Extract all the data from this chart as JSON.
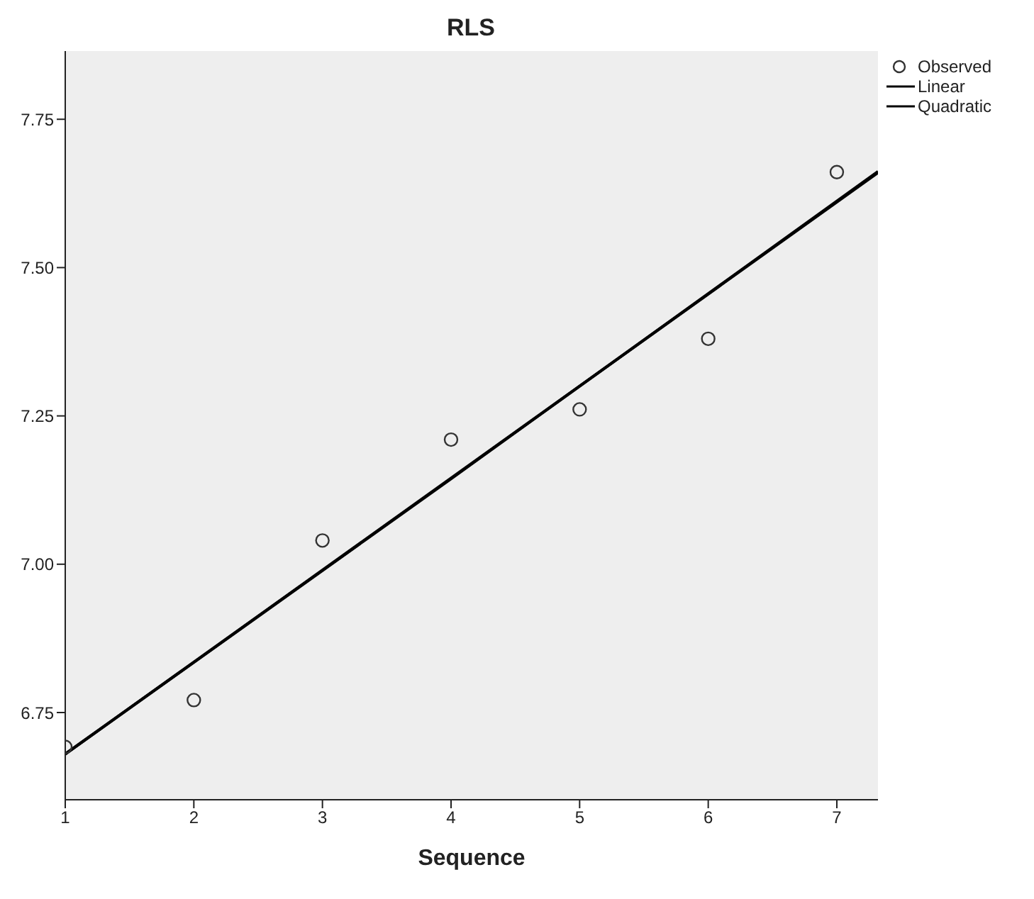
{
  "chart_data": {
    "type": "scatter",
    "title": "RLS",
    "xlabel": "Sequence",
    "xlim": [
      1,
      7.32
    ],
    "xticks": [
      1,
      2,
      3,
      4,
      5,
      6,
      7
    ],
    "ylim": [
      6.603,
      7.865
    ],
    "yticks": [
      6.75,
      {
        "value": 7.0,
        "label": "7.00"
      },
      {
        "value": 7.25,
        "label": "7.25"
      },
      {
        "value": 7.5,
        "label": "7.50"
      },
      7.75
    ],
    "legend": "top right",
    "grid": false,
    "series": [
      {
        "name": "Observed",
        "marker": "circle",
        "color": "#333333",
        "x": [
          1,
          2,
          3,
          4,
          5,
          6,
          7
        ],
        "values": [
          6.692,
          6.771,
          7.04,
          7.21,
          7.261,
          7.38,
          7.661
        ]
      },
      {
        "name": "Linear",
        "type": "line",
        "marker": "none",
        "color": "#000000",
        "x": [
          1,
          7.32
        ],
        "values": [
          6.68,
          7.66
        ]
      },
      {
        "name": "Quadratic",
        "type": "line",
        "marker": "none",
        "color": "#000000",
        "x": [
          1,
          4,
          7.32
        ],
        "values": [
          6.68,
          7.144,
          7.662
        ]
      }
    ]
  }
}
